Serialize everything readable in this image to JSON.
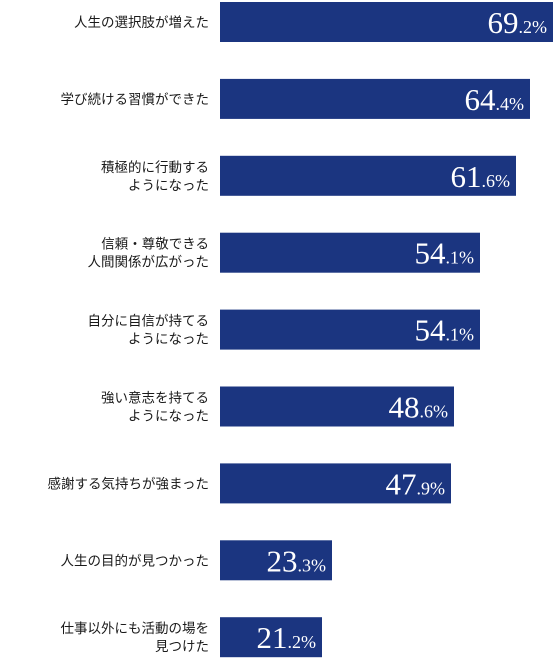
{
  "chart_data": {
    "type": "bar",
    "orientation": "horizontal",
    "bar_color": "#1b3580",
    "categories": [
      [
        "人生の選択肢が増えた"
      ],
      [
        "学び続ける習慣ができた"
      ],
      [
        "積極的に行動する",
        "ようになった"
      ],
      [
        "信頼・尊敬できる",
        "人間関係が広がった"
      ],
      [
        "自分に自信が持てる",
        "ようになった"
      ],
      [
        "強い意志を持てる",
        "ようになった"
      ],
      [
        "感謝する気持ちが強まった"
      ],
      [
        "人生の目的が見つかった"
      ],
      [
        "仕事以外にも活動の場を",
        "見つけた"
      ]
    ],
    "values": [
      69.2,
      64.4,
      61.6,
      54.1,
      54.1,
      48.6,
      47.9,
      23.3,
      21.2
    ],
    "value_labels": [
      {
        "int": "69",
        "dec": ".2%"
      },
      {
        "int": "64",
        "dec": ".4%"
      },
      {
        "int": "61",
        "dec": ".6%"
      },
      {
        "int": "54",
        "dec": ".1%"
      },
      {
        "int": "54",
        "dec": ".1%"
      },
      {
        "int": "48",
        "dec": ".6%"
      },
      {
        "int": "47",
        "dec": ".9%"
      },
      {
        "int": "23",
        "dec": ".3%"
      },
      {
        "int": "21",
        "dec": ".2%"
      }
    ],
    "xlim": [
      0,
      69.2
    ]
  }
}
